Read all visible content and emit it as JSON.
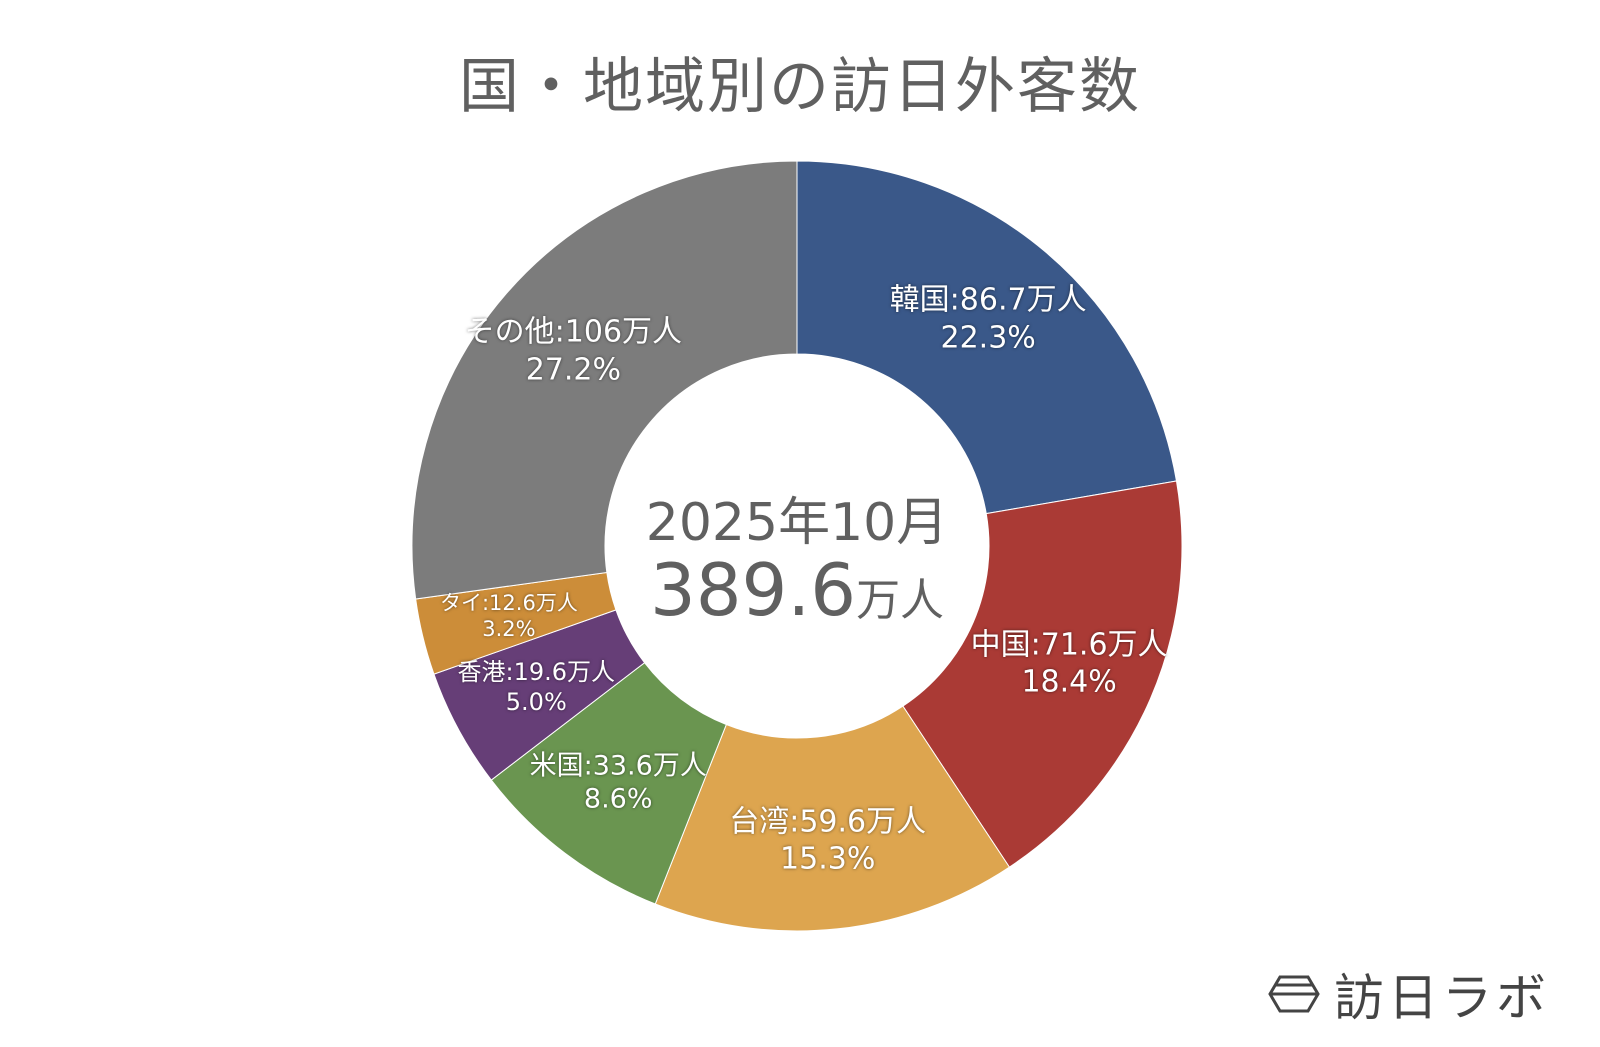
{
  "title": "国・地域別の訪日外客数",
  "center": {
    "period": "2025年10月",
    "total_value": "389.6",
    "total_unit": "万人"
  },
  "logo": {
    "text": "訪日ラボ",
    "icon": "hexagon-logo-icon"
  },
  "chart_data": {
    "type": "pie",
    "donut": true,
    "title": "国・地域別の訪日外客数",
    "center_label": "2025年10月 389.6万人",
    "categories": [
      "韓国",
      "中国",
      "台湾",
      "米国",
      "香港",
      "タイ",
      "その他"
    ],
    "values": [
      86.7,
      71.6,
      59.6,
      33.6,
      19.6,
      12.6,
      106
    ],
    "percentages": [
      22.3,
      18.4,
      15.3,
      8.6,
      5.0,
      3.2,
      27.2
    ],
    "unit": "万人",
    "colors": [
      "#3a5889",
      "#aa3a35",
      "#dda54f",
      "#6a9550",
      "#663e77",
      "#cc8d39",
      "#7c7c7c"
    ],
    "labels": [
      "韓国:86.7万人",
      "中国:71.6万人",
      "台湾:59.6万人",
      "米国:33.6万人",
      "香港:19.6万人",
      "タイ:12.6万人",
      "その他:106万人"
    ],
    "pct_labels": [
      "22.3%",
      "18.4%",
      "15.3%",
      "8.6%",
      "5.0%",
      "3.2%",
      "27.2%"
    ],
    "start_angle": "12 o'clock, clockwise",
    "legend": "none"
  }
}
